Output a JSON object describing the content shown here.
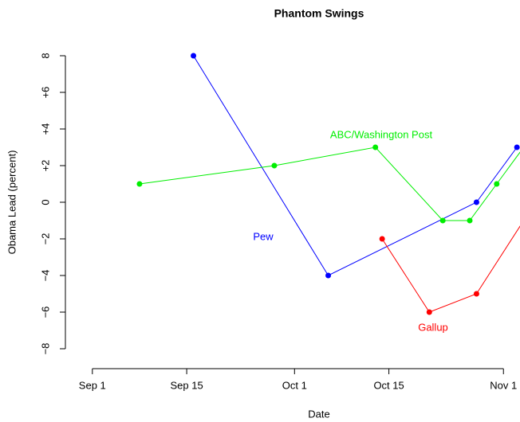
{
  "chart_data": {
    "type": "line",
    "title": "Phantom Swings",
    "x_label": "Date",
    "y_label": "Obama Lead (percent)",
    "series": [
      {
        "name": "Pew",
        "color": "#0000ff",
        "x": [
          "09-16",
          "10-06",
          "10-28",
          "11-03"
        ],
        "values": [
          8,
          -4,
          0,
          3
        ]
      },
      {
        "name": "ABC/Washington Post",
        "color": "#00ee00",
        "x": [
          "09-08",
          "09-28",
          "10-13",
          "10-23",
          "10-27",
          "10-31",
          "11-04"
        ],
        "values": [
          1,
          2,
          3,
          -1,
          -1,
          1,
          3
        ]
      },
      {
        "name": "Gallup",
        "color": "#ff0000",
        "x": [
          "10-14",
          "10-21",
          "10-28",
          "11-04"
        ],
        "values": [
          -2,
          -6,
          -5,
          -1
        ]
      }
    ],
    "xlim": [
      "08-28",
      "11-06"
    ],
    "xticks": [
      {
        "value": "09-01",
        "label": "Sep 1"
      },
      {
        "value": "09-15",
        "label": "Sep 15"
      },
      {
        "value": "10-01",
        "label": "Oct 1"
      },
      {
        "value": "10-15",
        "label": "Oct 15"
      },
      {
        "value": "11-01",
        "label": "Nov 1"
      }
    ],
    "ylim": [
      -8,
      8
    ],
    "yticks": [
      {
        "value": -8,
        "label": "−8"
      },
      {
        "value": -6,
        "label": "−6"
      },
      {
        "value": -4,
        "label": "−4"
      },
      {
        "value": -2,
        "label": "−2"
      },
      0,
      {
        "value": 2,
        "label": "+2"
      },
      {
        "value": 4,
        "label": "+4"
      },
      {
        "value": 6,
        "label": "+6"
      },
      8
    ]
  }
}
